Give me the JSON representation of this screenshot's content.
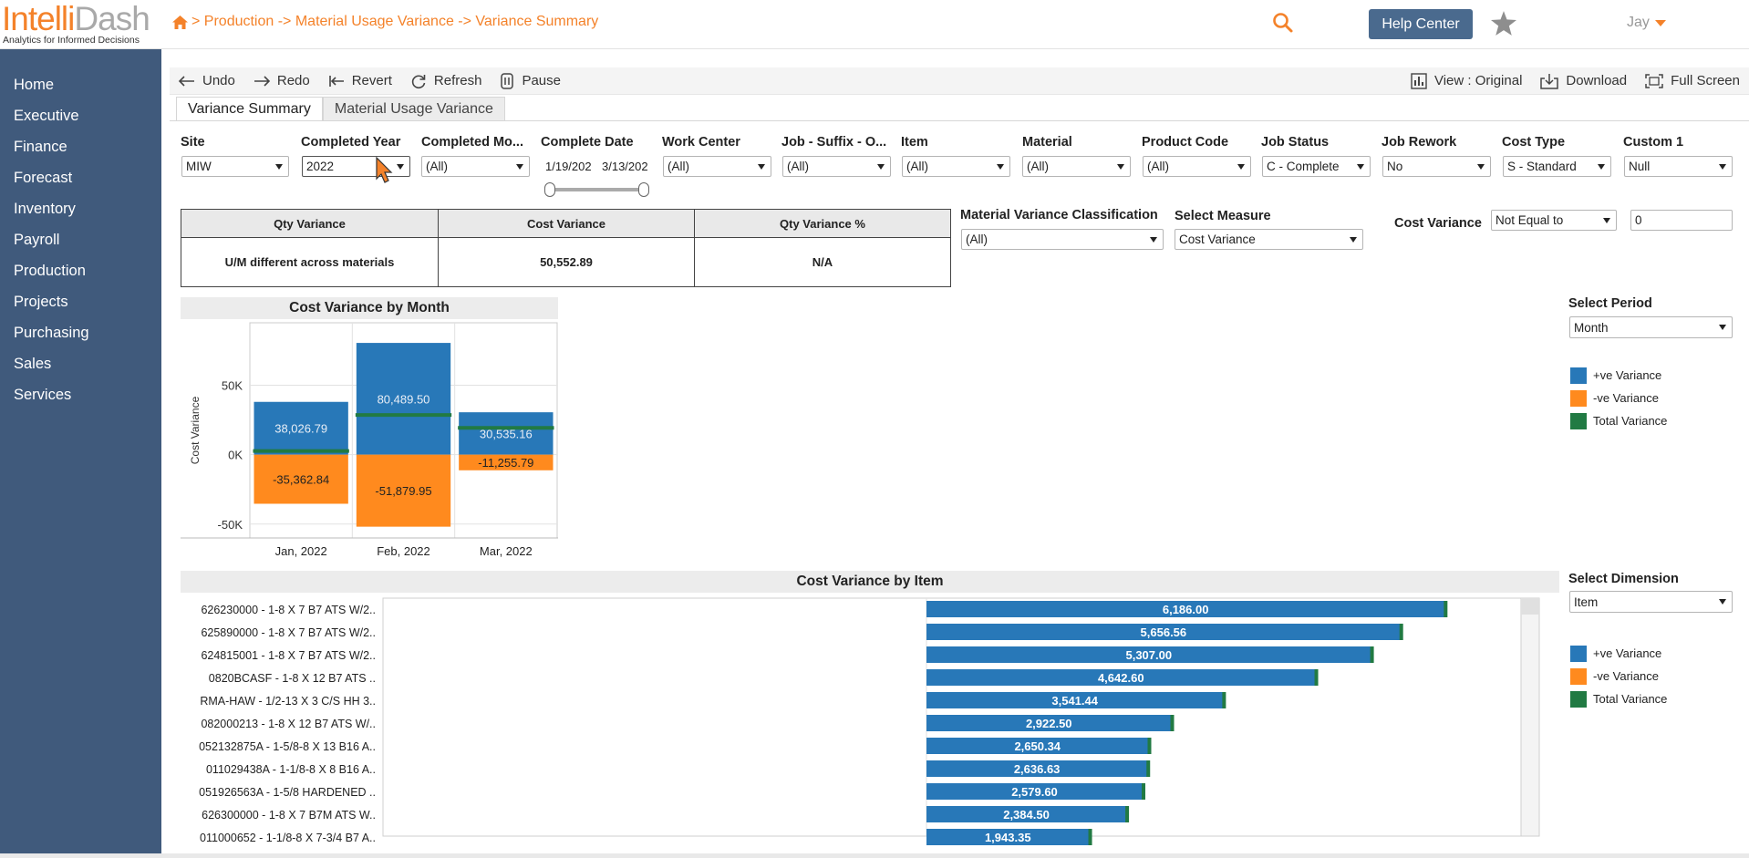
{
  "header": {
    "logo_part1": "Intelli",
    "logo_part2": "Dash",
    "tagline": "Analytics for Informed Decisions",
    "breadcrumb": "> Production -> Material Usage Variance -> Variance Summary",
    "help_label": "Help Center",
    "user_name": "Jay",
    "accent_color": "#f4822a",
    "help_color": "#4a6a8e"
  },
  "sidebar": {
    "items": [
      "Home",
      "Executive",
      "Finance",
      "Forecast",
      "Inventory",
      "Payroll",
      "Production",
      "Projects",
      "Purchasing",
      "Sales",
      "Services"
    ],
    "color": "#405a7c"
  },
  "toolbar": {
    "undo": "Undo",
    "redo": "Redo",
    "revert": "Revert",
    "refresh": "Refresh",
    "pause": "Pause",
    "view": "View : Original",
    "download": "Download",
    "fullscreen": "Full Screen"
  },
  "tabs": [
    "Variance Summary",
    "Material Usage Variance"
  ],
  "filters": {
    "site": {
      "label": "Site",
      "value": "MIW"
    },
    "completed_year": {
      "label": "Completed Year",
      "value": "2022"
    },
    "completed_month": {
      "label": "Completed Mo...",
      "value": "(All)"
    },
    "complete_date": {
      "label": "Complete Date",
      "from": "1/19/202",
      "to": "3/13/202"
    },
    "work_center": {
      "label": "Work Center",
      "value": "(All)"
    },
    "job_suffix": {
      "label": "Job - Suffix - O...",
      "value": "(All)"
    },
    "item": {
      "label": "Item",
      "value": "(All)"
    },
    "material": {
      "label": "Material",
      "value": "(All)"
    },
    "product_code": {
      "label": "Product Code",
      "value": "(All)"
    },
    "job_status": {
      "label": "Job Status",
      "value": "C - Complete"
    },
    "job_rework": {
      "label": "Job Rework",
      "value": "No"
    },
    "cost_type": {
      "label": "Cost Type",
      "value": "S - Standard"
    },
    "custom1": {
      "label": "Custom 1",
      "value": "Null"
    }
  },
  "kpi": {
    "headers": [
      "Qty Variance",
      "Cost Variance",
      "Qty Variance %"
    ],
    "values": [
      "U/M different across materials",
      "50,552.89",
      "N/A"
    ]
  },
  "controls": {
    "classification_label": "Material Variance Classification",
    "classification_value": "(All)",
    "measure_label": "Select Measure",
    "measure_value": "Cost Variance",
    "cost_variance_label": "Cost Variance",
    "cost_variance_op": "Not Equal to",
    "cost_variance_value": "0",
    "period_label": "Select Period",
    "period_value": "Month",
    "dimension_label": "Select Dimension",
    "dimension_value": "Item"
  },
  "legend": {
    "pos": "+ve Variance",
    "neg": "-ve Variance",
    "total": "Total Variance",
    "pos_color": "#2878b8",
    "neg_color": "#ff8a1e",
    "total_color": "#217a43"
  },
  "chart_data": [
    {
      "type": "bar",
      "title": "Cost Variance by Month",
      "ylabel": "Cost Variance",
      "xlabel": "",
      "categories": [
        "Jan, 2022",
        "Feb, 2022",
        "Mar, 2022"
      ],
      "ylim": [
        -60000,
        95000
      ],
      "yticks": [
        "50K",
        "0K",
        "-50K"
      ],
      "series": [
        {
          "name": "+ve Variance",
          "values": [
            38026.79,
            80489.5,
            30535.16
          ],
          "labels": [
            "38,026.79",
            "80,489.50",
            "30,535.16"
          ]
        },
        {
          "name": "-ve Variance",
          "values": [
            -35362.84,
            -51879.95,
            -11255.79
          ],
          "labels": [
            "-35,362.84",
            "-51,879.95",
            "-11,255.79"
          ]
        },
        {
          "name": "Total Variance",
          "values": [
            2663.95,
            28609.55,
            19279.37
          ]
        }
      ]
    },
    {
      "type": "bar",
      "title": "Cost Variance by Item",
      "orientation": "horizontal",
      "categories": [
        "626230000 - 1-8 X 7 B7 ATS W/2..",
        "625890000 - 1-8 X 7 B7 ATS W/2..",
        "624815001 - 1-8 X 7 B7 ATS W/2..",
        "0820BCASF - 1-8 X 12 B7 ATS ..",
        "RMA-HAW - 1/2-13 X 3 C/S HH 3..",
        "082000213 - 1-8 X 12 B7 ATS W/..",
        "052132875A - 1-5/8-8 X 13 B16 A..",
        "011029438A - 1-1/8-8 X 8 B16 A..",
        "051926563A - 1-5/8 HARDENED ..",
        "626300000 - 1-8 X 7 B7M ATS W..",
        "011000652 - 1-1/8-8 X 7-3/4 B7 A.."
      ],
      "series": [
        {
          "name": "+ve Variance",
          "values": [
            6186.0,
            5656.56,
            5307.0,
            4642.6,
            3541.44,
            2922.5,
            2650.34,
            2636.63,
            2579.6,
            2384.5,
            1943.35
          ],
          "labels": [
            "6,186.00",
            "5,656.56",
            "5,307.00",
            "4,642.60",
            "3,541.44",
            "2,922.50",
            "2,650.34",
            "2,636.63",
            "2,579.60",
            "2,384.50",
            "1,943.35"
          ]
        }
      ]
    }
  ]
}
